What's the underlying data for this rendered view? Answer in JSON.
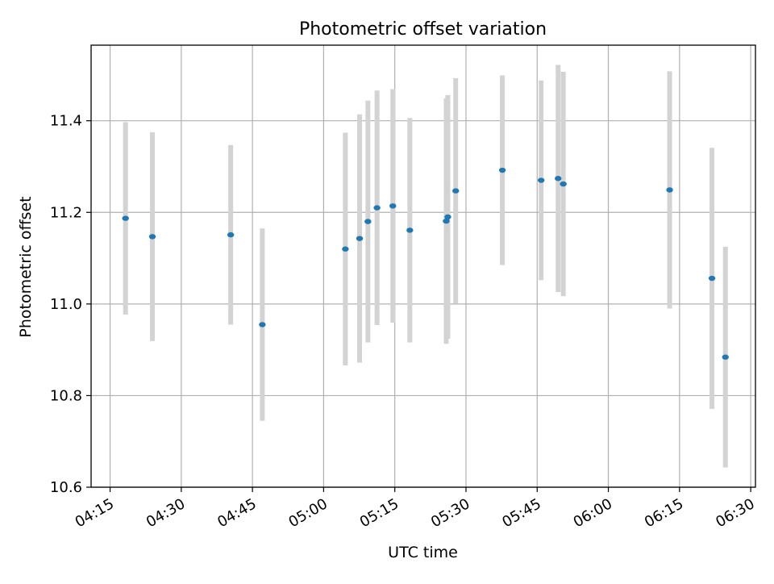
{
  "chart_data": {
    "type": "scatter",
    "title": "Photometric offset variation",
    "xlabel": "UTC time",
    "ylabel": "Photometric offset",
    "xlim": [
      "04:11",
      "06:31"
    ],
    "ylim": [
      10.6,
      11.565
    ],
    "grid": true,
    "x_ticks": [
      "04:15",
      "04:30",
      "04:45",
      "05:00",
      "05:15",
      "05:30",
      "05:45",
      "06:00",
      "06:15",
      "06:30"
    ],
    "y_ticks": [
      "10.6",
      "10.8",
      "11.0",
      "11.2",
      "11.4"
    ],
    "series": [
      {
        "point_color": "#1f77b4",
        "errorbar_color": "#d3d3d3",
        "points": [
          {
            "x": "04:18:15",
            "y": 11.187,
            "yerr": 0.21
          },
          {
            "x": "04:23:55",
            "y": 11.147,
            "yerr": 0.228
          },
          {
            "x": "04:40:25",
            "y": 11.151,
            "yerr": 0.196
          },
          {
            "x": "04:47:05",
            "y": 10.955,
            "yerr": 0.21
          },
          {
            "x": "05:04:35",
            "y": 11.12,
            "yerr": 0.254
          },
          {
            "x": "05:07:35",
            "y": 11.143,
            "yerr": 0.271
          },
          {
            "x": "05:09:20",
            "y": 11.18,
            "yerr": 0.264
          },
          {
            "x": "05:11:15",
            "y": 11.21,
            "yerr": 0.256
          },
          {
            "x": "05:14:35",
            "y": 11.214,
            "yerr": 0.255
          },
          {
            "x": "05:18:10",
            "y": 11.161,
            "yerr": 0.245
          },
          {
            "x": "05:25:50",
            "y": 11.181,
            "yerr": 0.268
          },
          {
            "x": "05:26:10",
            "y": 11.19,
            "yerr": 0.266
          },
          {
            "x": "05:27:50",
            "y": 11.247,
            "yerr": 0.246
          },
          {
            "x": "05:37:40",
            "y": 11.292,
            "yerr": 0.207
          },
          {
            "x": "05:45:50",
            "y": 11.27,
            "yerr": 0.218
          },
          {
            "x": "05:49:25",
            "y": 11.274,
            "yerr": 0.248
          },
          {
            "x": "05:50:30",
            "y": 11.262,
            "yerr": 0.245
          },
          {
            "x": "06:12:55",
            "y": 11.249,
            "yerr": 0.259
          },
          {
            "x": "06:21:50",
            "y": 11.056,
            "yerr": 0.285
          },
          {
            "x": "06:24:40",
            "y": 10.884,
            "yerr": 0.241
          }
        ]
      }
    ]
  }
}
